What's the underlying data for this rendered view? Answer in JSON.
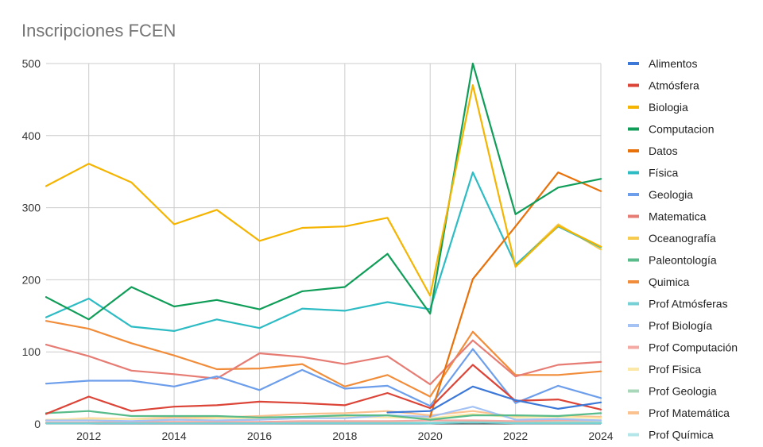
{
  "chart_data": {
    "type": "line",
    "title": "Inscripciones FCEN",
    "xlabel": "",
    "ylabel": "",
    "x": [
      2011,
      2012,
      2013,
      2014,
      2015,
      2016,
      2017,
      2018,
      2019,
      2020,
      2021,
      2022,
      2023,
      2024
    ],
    "xlim": [
      2011,
      2024
    ],
    "ylim": [
      0,
      500
    ],
    "x_ticks": [
      "2012",
      "2014",
      "2016",
      "2018",
      "2020",
      "2022",
      "2024"
    ],
    "y_ticks": [
      "0",
      "100",
      "200",
      "300",
      "400",
      "500"
    ],
    "grid": true,
    "legend_position": "right",
    "series": [
      {
        "name": "Alimentos",
        "color": "#3c78d8",
        "values": [
          null,
          null,
          null,
          null,
          null,
          null,
          null,
          null,
          16,
          18,
          52,
          33,
          21,
          30
        ]
      },
      {
        "name": "Atmósfera",
        "color": "#db4437",
        "values": [
          14,
          38,
          18,
          24,
          26,
          31,
          29,
          26,
          43,
          22,
          82,
          32,
          34,
          20
        ]
      },
      {
        "name": "Biologia",
        "color": "#f4b400",
        "values": [
          330,
          361,
          335,
          277,
          297,
          254,
          272,
          274,
          286,
          178,
          470,
          218,
          275,
          246
        ]
      },
      {
        "name": "Computacion",
        "color": "#0f9d58",
        "values": [
          176,
          145,
          190,
          163,
          172,
          159,
          184,
          190,
          236,
          153,
          500,
          291,
          328,
          340
        ]
      },
      {
        "name": "Datos",
        "color": "#e8710a",
        "values": [
          null,
          null,
          null,
          null,
          null,
          null,
          null,
          null,
          null,
          10,
          201,
          274,
          349,
          323
        ]
      },
      {
        "name": "Física",
        "color": "#2dbbc4",
        "values": [
          148,
          174,
          135,
          129,
          145,
          133,
          160,
          157,
          169,
          159,
          349,
          221,
          274,
          245
        ]
      },
      {
        "name": "Geologia",
        "color": "#6d9eeb",
        "values": [
          56,
          60,
          60,
          52,
          66,
          47,
          75,
          49,
          53,
          25,
          104,
          29,
          53,
          36
        ]
      },
      {
        "name": "Matematica",
        "color": "#e67c73",
        "values": [
          110,
          94,
          74,
          69,
          63,
          98,
          93,
          83,
          94,
          55,
          116,
          66,
          82,
          86
        ]
      },
      {
        "name": "Oceanografía",
        "color": "#f7cb4d",
        "values": [
          null,
          null,
          null,
          null,
          null,
          null,
          null,
          null,
          null,
          null,
          null,
          220,
          277,
          242
        ]
      },
      {
        "name": "Paleontología",
        "color": "#57bb8a",
        "values": [
          15,
          18,
          11,
          11,
          11,
          9,
          10,
          12,
          12,
          6,
          12,
          12,
          11,
          15
        ]
      },
      {
        "name": "Quimica",
        "color": "#f18d3a",
        "values": [
          143,
          132,
          112,
          95,
          76,
          77,
          83,
          52,
          68,
          38,
          128,
          68,
          68,
          73
        ]
      },
      {
        "name": "Prof Atmósferas",
        "color": "#76d1d6",
        "values": [
          1,
          1,
          1,
          1,
          1,
          1,
          1,
          1,
          1,
          1,
          2,
          1,
          1,
          1
        ]
      },
      {
        "name": "Prof Biología",
        "color": "#a4c2f4",
        "values": [
          5,
          5,
          4,
          6,
          5,
          6,
          8,
          8,
          12,
          10,
          24,
          6,
          7,
          5
        ]
      },
      {
        "name": "Prof Computación",
        "color": "#f4a9a3",
        "values": [
          2,
          2,
          3,
          3,
          3,
          3,
          4,
          4,
          4,
          5,
          5,
          4,
          5,
          5
        ]
      },
      {
        "name": "Prof Fisica",
        "color": "#fce8a6",
        "values": [
          6,
          7,
          7,
          6,
          8,
          8,
          9,
          10,
          9,
          8,
          14,
          9,
          10,
          8
        ]
      },
      {
        "name": "Prof Geologia",
        "color": "#a8d8b9",
        "values": [
          1,
          1,
          2,
          2,
          2,
          2,
          2,
          2,
          2,
          1,
          3,
          2,
          2,
          2
        ]
      },
      {
        "name": "Prof Matemática",
        "color": "#fbc28f",
        "values": [
          5,
          8,
          7,
          9,
          9,
          11,
          14,
          15,
          18,
          12,
          18,
          10,
          11,
          10
        ]
      },
      {
        "name": "Prof Química",
        "color": "#b2e6e8",
        "values": [
          2,
          2,
          2,
          2,
          2,
          2,
          3,
          2,
          3,
          2,
          4,
          2,
          3,
          3
        ]
      }
    ]
  }
}
